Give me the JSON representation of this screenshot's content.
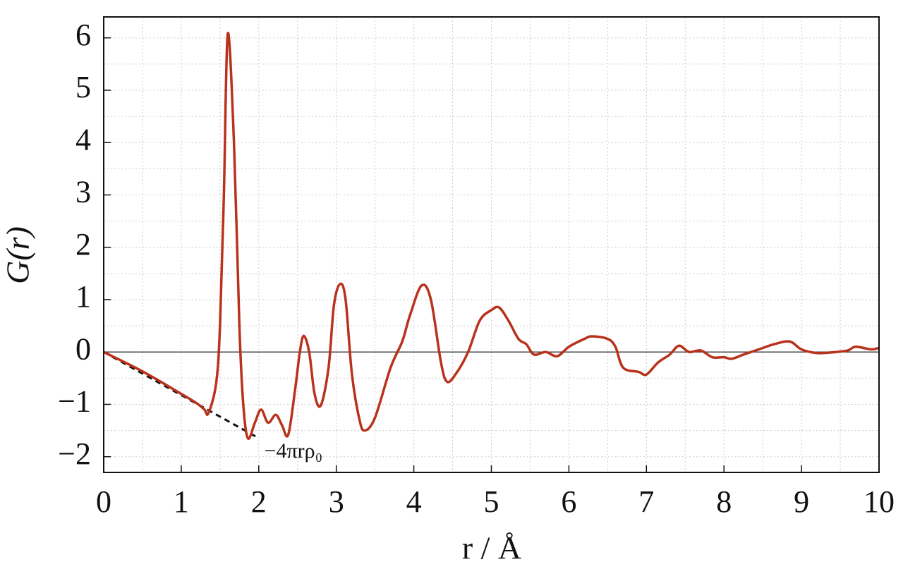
{
  "chart_data": {
    "type": "line",
    "xlabel": "r / Å",
    "ylabel": "G(r)",
    "xlim": [
      0,
      10
    ],
    "ylim": [
      -2.3,
      6.4
    ],
    "xticks": [
      0,
      1,
      2,
      3,
      4,
      5,
      6,
      7,
      8,
      9,
      10
    ],
    "yticks": [
      {
        "value": -2,
        "label": "−2"
      },
      {
        "value": -1,
        "label": "−1"
      },
      0,
      1,
      2,
      3,
      4,
      5,
      6
    ],
    "grid": true,
    "series": [
      {
        "color": "#b8321c",
        "x": [
          0,
          0.5,
          1.0,
          1.2,
          1.3,
          1.35,
          1.45,
          1.5,
          1.55,
          1.6,
          1.68,
          1.75,
          1.8,
          1.86,
          1.95,
          2.03,
          2.12,
          2.22,
          2.3,
          2.38,
          2.47,
          2.53,
          2.58,
          2.65,
          2.72,
          2.8,
          2.9,
          2.97,
          3.05,
          3.12,
          3.2,
          3.3,
          3.37,
          3.5,
          3.7,
          3.85,
          3.95,
          4.1,
          4.22,
          4.35,
          4.43,
          4.55,
          4.7,
          4.85,
          5.0,
          5.1,
          5.22,
          5.35,
          5.45,
          5.55,
          5.7,
          5.85,
          6.0,
          6.2,
          6.3,
          6.5,
          6.6,
          6.7,
          6.9,
          7.0,
          7.15,
          7.3,
          7.42,
          7.55,
          7.7,
          7.85,
          8.0,
          8.1,
          8.25,
          8.45,
          8.65,
          8.85,
          9.0,
          9.2,
          9.45,
          9.6,
          9.7,
          9.9,
          10.0
        ],
        "values": [
          0,
          -0.37,
          -0.8,
          -0.98,
          -1.1,
          -1.17,
          -0.6,
          0.5,
          3.0,
          6.08,
          4.0,
          0.5,
          -1.0,
          -1.65,
          -1.35,
          -1.1,
          -1.35,
          -1.2,
          -1.4,
          -1.58,
          -0.7,
          0.0,
          0.31,
          0.0,
          -0.8,
          -1.02,
          -0.3,
          0.9,
          1.3,
          1.0,
          -0.4,
          -1.3,
          -1.5,
          -1.25,
          -0.3,
          0.2,
          0.7,
          1.27,
          1.0,
          -0.2,
          -0.57,
          -0.4,
          0.0,
          0.6,
          0.8,
          0.85,
          0.6,
          0.25,
          0.15,
          -0.05,
          0.0,
          -0.08,
          0.1,
          0.25,
          0.3,
          0.25,
          0.1,
          -0.3,
          -0.38,
          -0.43,
          -0.2,
          -0.05,
          0.12,
          0.0,
          0.03,
          -0.1,
          -0.1,
          -0.13,
          -0.05,
          0.05,
          0.15,
          0.2,
          0.05,
          -0.02,
          0.0,
          0.03,
          0.1,
          0.05,
          0.08
        ]
      }
    ],
    "reference_line": {
      "label": "−4πrρ₀",
      "x": [
        0,
        1.98
      ],
      "values": [
        0,
        -1.63
      ],
      "color": "#111111",
      "dashed": true
    }
  }
}
